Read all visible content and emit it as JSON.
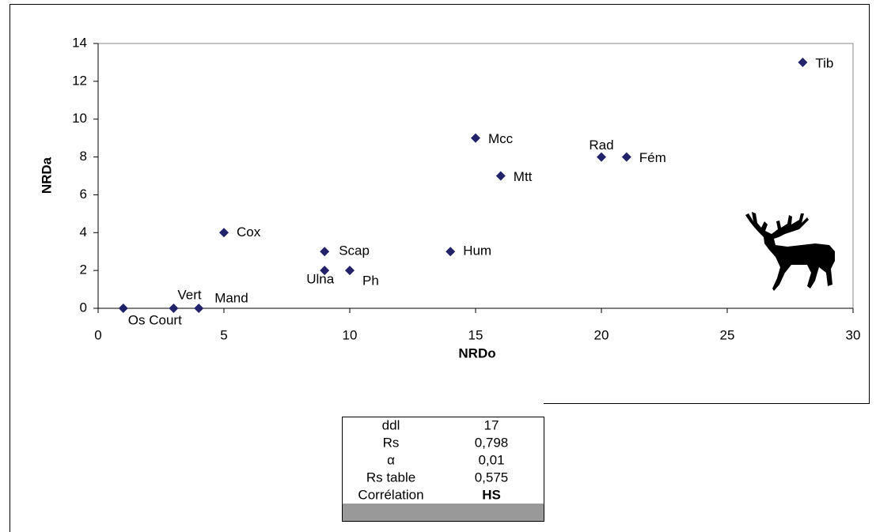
{
  "chart_data": {
    "type": "scatter",
    "x": [
      1,
      3,
      4,
      5,
      9,
      9,
      10,
      14,
      15,
      16,
      20,
      21,
      28
    ],
    "values": [
      0,
      0,
      0,
      4,
      3,
      2,
      2,
      3,
      9,
      7,
      8,
      8,
      13
    ],
    "point_labels": [
      "Os Court",
      "Vert",
      "Mand",
      "Cox",
      "Scap",
      "Ulna",
      "Ph",
      "Hum",
      "Mcc",
      "Mtt",
      "Rad",
      "Fém",
      "Tib"
    ],
    "color": "#22226b",
    "x_label": "NRDo",
    "y_label": "NRDa",
    "xlim": [
      0,
      30
    ],
    "xticks": [
      0,
      5,
      10,
      15,
      20,
      25,
      30
    ],
    "ylim": [
      0,
      14
    ],
    "yticks": [
      0,
      2,
      4,
      6,
      8,
      10,
      12,
      14
    ]
  },
  "table": {
    "rows": [
      [
        "ddl",
        "17"
      ],
      [
        "Rs",
        "0,798"
      ],
      [
        "α",
        "0,01"
      ],
      [
        "Rs table",
        "0,575"
      ],
      [
        "Corrélation",
        "HS"
      ]
    ]
  }
}
